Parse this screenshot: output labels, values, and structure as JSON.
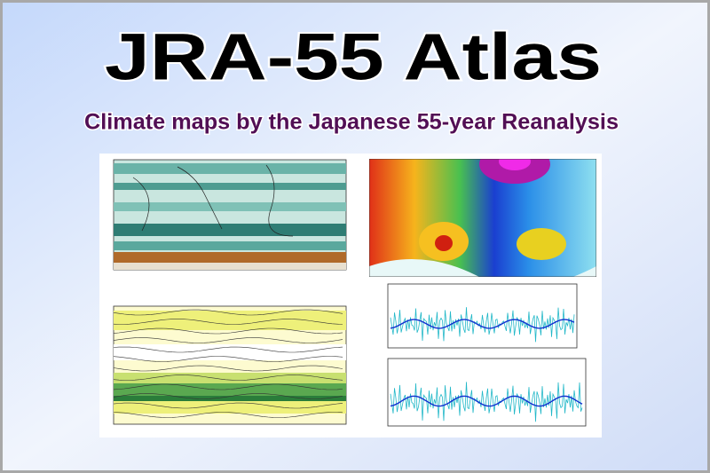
{
  "header": {
    "title": "JRA-55 Atlas",
    "subtitle": "Climate maps by the Japanese 55-year Reanalysis"
  }
}
